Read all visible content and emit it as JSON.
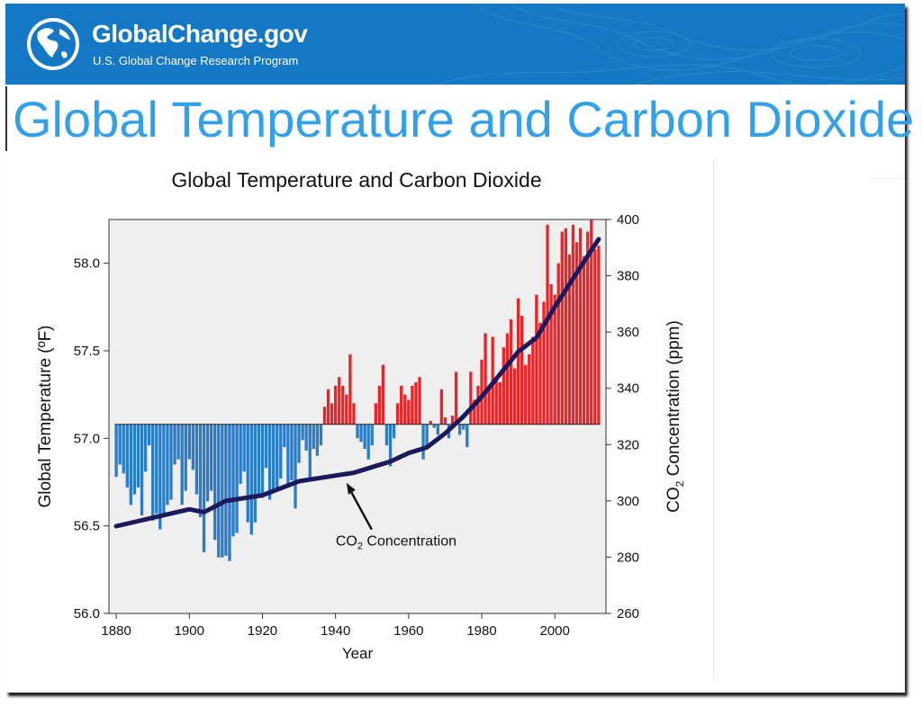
{
  "site": {
    "name": "GlobalChange.gov",
    "subtitle": "U.S. Global Change Research Program",
    "logo_icon": "globe-icon"
  },
  "page": {
    "heading": "Global Temperature and Carbon Dioxide"
  },
  "colors": {
    "banner": "#1478c5",
    "heading": "#33a0e8",
    "positive_bar": "#e8262a",
    "negative_bar": "#2a7cc7",
    "co2_line": "#1c1a5c",
    "plot_bg": "#efefef"
  },
  "chart_data": {
    "type": "bar",
    "title": "Global Temperature and Carbon Dioxide",
    "xlabel": "Year",
    "ylabel": "Global Temperature (ºF)",
    "y2label_parts": [
      "CO",
      "2",
      " Concentration (ppm)"
    ],
    "xlim": [
      1878,
      2014
    ],
    "ylim": [
      56.0,
      58.25
    ],
    "y2lim": [
      260,
      400
    ],
    "baseline": 57.08,
    "x_ticks": [
      1880,
      1900,
      1920,
      1940,
      1960,
      1980,
      2000
    ],
    "y_ticks": [
      "56.0",
      "56.5",
      "57.0",
      "57.5",
      "58.0"
    ],
    "y2_ticks": [
      260,
      280,
      300,
      320,
      340,
      360,
      380,
      400
    ],
    "grid": false,
    "series": [
      {
        "name": "Global Temperature",
        "kind": "bar",
        "x": [
          1880,
          1881,
          1882,
          1883,
          1884,
          1885,
          1886,
          1887,
          1888,
          1889,
          1890,
          1891,
          1892,
          1893,
          1894,
          1895,
          1896,
          1897,
          1898,
          1899,
          1900,
          1901,
          1902,
          1903,
          1904,
          1905,
          1906,
          1907,
          1908,
          1909,
          1910,
          1911,
          1912,
          1913,
          1914,
          1915,
          1916,
          1917,
          1918,
          1919,
          1920,
          1921,
          1922,
          1923,
          1924,
          1925,
          1926,
          1927,
          1928,
          1929,
          1930,
          1931,
          1932,
          1933,
          1934,
          1935,
          1936,
          1937,
          1938,
          1939,
          1940,
          1941,
          1942,
          1943,
          1944,
          1945,
          1946,
          1947,
          1948,
          1949,
          1950,
          1951,
          1952,
          1953,
          1954,
          1955,
          1956,
          1957,
          1958,
          1959,
          1960,
          1961,
          1962,
          1963,
          1964,
          1965,
          1966,
          1967,
          1968,
          1969,
          1970,
          1971,
          1972,
          1973,
          1974,
          1975,
          1976,
          1977,
          1978,
          1979,
          1980,
          1981,
          1982,
          1983,
          1984,
          1985,
          1986,
          1987,
          1988,
          1989,
          1990,
          1991,
          1992,
          1993,
          1994,
          1995,
          1996,
          1997,
          1998,
          1999,
          2000,
          2001,
          2002,
          2003,
          2004,
          2005,
          2006,
          2007,
          2008,
          2009,
          2010,
          2011,
          2012
        ],
        "values": [
          56.78,
          56.85,
          56.8,
          56.72,
          56.62,
          56.68,
          56.72,
          56.56,
          56.81,
          56.96,
          56.53,
          56.57,
          56.48,
          56.56,
          56.62,
          56.65,
          56.85,
          56.88,
          56.62,
          56.7,
          56.88,
          56.82,
          56.68,
          56.55,
          56.35,
          56.64,
          56.7,
          56.42,
          56.32,
          56.32,
          56.33,
          56.3,
          56.44,
          56.46,
          56.74,
          56.81,
          56.52,
          56.45,
          56.52,
          56.66,
          56.66,
          56.83,
          56.65,
          56.69,
          56.71,
          56.77,
          56.95,
          56.74,
          56.76,
          56.6,
          56.86,
          56.99,
          56.93,
          56.76,
          56.94,
          56.9,
          56.96,
          57.18,
          57.28,
          57.2,
          57.3,
          57.35,
          57.3,
          57.25,
          57.48,
          57.2,
          57.0,
          56.98,
          56.94,
          56.88,
          56.96,
          57.2,
          57.3,
          57.42,
          56.96,
          56.84,
          57.0,
          57.2,
          57.3,
          57.25,
          57.22,
          57.3,
          57.32,
          57.35,
          56.88,
          56.95,
          57.1,
          57.06,
          57.02,
          57.28,
          57.12,
          57.0,
          57.13,
          57.38,
          57.02,
          57.05,
          56.95,
          57.38,
          57.22,
          57.3,
          57.45,
          57.6,
          57.28,
          57.58,
          57.35,
          57.32,
          57.52,
          57.6,
          57.68,
          57.4,
          57.8,
          57.7,
          57.42,
          57.48,
          57.58,
          57.82,
          57.66,
          57.78,
          58.22,
          57.88,
          57.82,
          58.0,
          58.18,
          58.2,
          58.05,
          58.22,
          58.12,
          58.2,
          58.04,
          58.18,
          58.25,
          58.08,
          58.1
        ]
      },
      {
        "name": "CO2 Concentration",
        "kind": "line",
        "axis": "right",
        "x": [
          1880,
          1890,
          1900,
          1904,
          1910,
          1920,
          1930,
          1940,
          1945,
          1950,
          1955,
          1960,
          1965,
          1970,
          1975,
          1980,
          1985,
          1990,
          1995,
          2000,
          2005,
          2012
        ],
        "values": [
          291,
          294,
          297,
          296,
          300,
          302,
          307,
          309,
          310,
          312,
          314,
          317,
          319,
          324,
          330,
          337,
          345,
          353,
          358,
          369,
          379,
          393
        ]
      }
    ],
    "annotation": {
      "parts": [
        "CO",
        "2",
        " Concentration"
      ],
      "arrow_to": {
        "x": 1943,
        "y": 309
      }
    }
  }
}
